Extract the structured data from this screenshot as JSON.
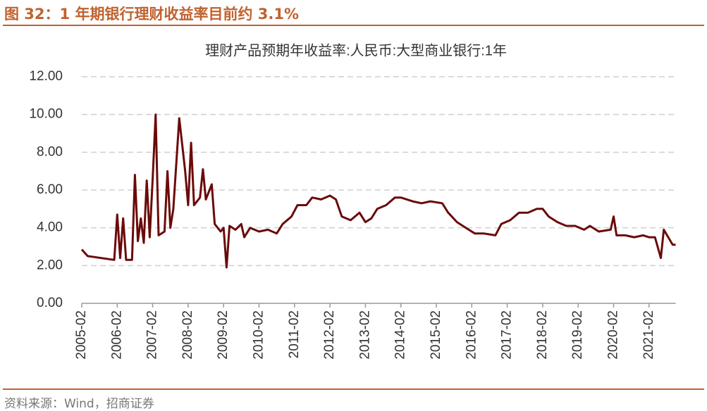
{
  "header": {
    "title": "图 32：1 年期银行理财收益率目前约 3.1%"
  },
  "footer": {
    "source": "资料来源：Wind，招商证券"
  },
  "chart_data": {
    "type": "line",
    "title": "理财产品预期年收益率:人民币:大型商业银行:1年",
    "x": [
      "2005-02",
      "2005-04",
      "2006-01",
      "2006-02",
      "2006-03",
      "2006-04",
      "2006-05",
      "2006-07",
      "2006-08",
      "2006-09",
      "2006-10",
      "2006-11",
      "2006-12",
      "2007-01",
      "2007-02",
      "2007-03",
      "2007-04",
      "2007-06",
      "2007-07",
      "2007-08",
      "2007-09",
      "2007-11",
      "2008-01",
      "2008-02",
      "2008-03",
      "2008-04",
      "2008-06",
      "2008-07",
      "2008-08",
      "2008-10",
      "2008-11",
      "2009-01",
      "2009-02",
      "2009-03",
      "2009-04",
      "2009-06",
      "2009-08",
      "2009-09",
      "2009-11",
      "2010-02",
      "2010-05",
      "2010-08",
      "2010-10",
      "2011-01",
      "2011-03",
      "2011-06",
      "2011-08",
      "2011-11",
      "2012-02",
      "2012-04",
      "2012-06",
      "2012-09",
      "2012-12",
      "2013-02",
      "2013-04",
      "2013-06",
      "2013-09",
      "2013-12",
      "2014-02",
      "2014-06",
      "2014-09",
      "2014-12",
      "2015-04",
      "2015-06",
      "2015-09",
      "2015-12",
      "2016-03",
      "2016-06",
      "2016-10",
      "2016-12",
      "2017-03",
      "2017-06",
      "2017-09",
      "2017-12",
      "2018-02",
      "2018-04",
      "2018-07",
      "2018-10",
      "2019-01",
      "2019-04",
      "2019-06",
      "2019-09",
      "2020-01",
      "2020-02",
      "2020-03",
      "2020-06",
      "2020-09",
      "2020-12",
      "2021-02",
      "2021-04",
      "2021-06",
      "2021-07",
      "2021-10",
      "2021-11"
    ],
    "series": [
      {
        "name": "理财产品预期年收益率:人民币:大型商业银行:1年",
        "color": "#6b0a0a",
        "values": [
          2.85,
          2.5,
          2.3,
          4.7,
          2.4,
          4.5,
          2.3,
          2.3,
          6.8,
          3.3,
          4.5,
          3.2,
          6.5,
          3.5,
          6.6,
          10.0,
          3.6,
          3.8,
          7.0,
          4.0,
          5.0,
          9.8,
          7.0,
          5.2,
          8.5,
          5.2,
          5.6,
          7.1,
          5.5,
          6.3,
          4.2,
          3.8,
          4.0,
          1.9,
          4.1,
          3.9,
          4.2,
          3.5,
          4.0,
          3.8,
          3.9,
          3.7,
          4.2,
          4.6,
          5.2,
          5.2,
          5.6,
          5.5,
          5.7,
          5.5,
          4.6,
          4.4,
          4.8,
          4.3,
          4.5,
          5.0,
          5.2,
          5.6,
          5.6,
          5.4,
          5.3,
          5.4,
          5.3,
          4.8,
          4.3,
          4.0,
          3.7,
          3.7,
          3.6,
          4.2,
          4.4,
          4.8,
          4.8,
          5.0,
          5.0,
          4.6,
          4.3,
          4.1,
          4.1,
          3.9,
          4.1,
          3.8,
          3.9,
          4.6,
          3.6,
          3.6,
          3.5,
          3.6,
          3.5,
          3.5,
          2.4,
          3.9,
          3.1,
          3.1
        ]
      }
    ],
    "xlim": [
      "2005-02",
      "2021-11"
    ],
    "xticks": [
      "2005-02",
      "2006-02",
      "2007-02",
      "2008-02",
      "2009-02",
      "2010-02",
      "2011-02",
      "2012-02",
      "2013-02",
      "2014-02",
      "2015-02",
      "2016-02",
      "2017-02",
      "2018-02",
      "2019-02",
      "2020-02",
      "2021-02"
    ],
    "ylim": [
      0,
      12
    ],
    "yticks": [
      {
        "value": 0,
        "label": "0.00"
      },
      {
        "value": 2,
        "label": "2.00"
      },
      {
        "value": 4,
        "label": "4.00"
      },
      {
        "value": 6,
        "label": "6.00"
      },
      {
        "value": 8,
        "label": "8.00"
      },
      {
        "value": 10,
        "label": "10.00"
      },
      {
        "value": 12,
        "label": "12.00"
      }
    ],
    "grid": true
  }
}
